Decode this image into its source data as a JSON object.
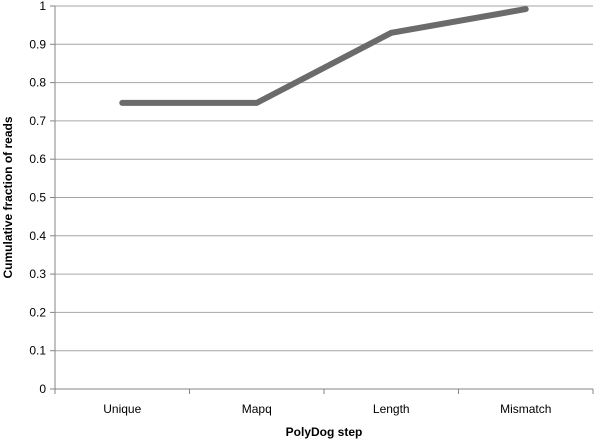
{
  "chart_data": {
    "type": "line",
    "title": "",
    "xlabel": "PolyDog step",
    "ylabel": "Cumulative fraction of reads",
    "categories": [
      "Unique",
      "Mapq",
      "Length",
      "Mismatch"
    ],
    "series": [
      {
        "values": [
          0.747,
          0.747,
          0.93,
          0.992
        ],
        "color": "#6b6b6b"
      }
    ],
    "ylim": [
      0,
      1
    ],
    "yticks": [
      "0",
      "0.1",
      "0.2",
      "0.3",
      "0.4",
      "0.5",
      "0.6",
      "0.7",
      "0.8",
      "0.9",
      "1"
    ],
    "grid": true,
    "legend": "none"
  }
}
